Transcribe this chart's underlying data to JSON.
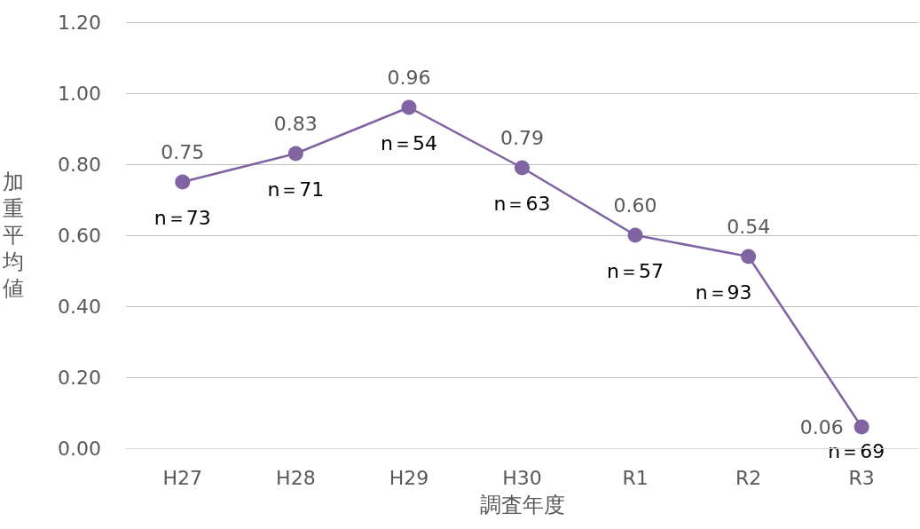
{
  "chart_data": {
    "type": "line",
    "xlabel": "調査年度",
    "ylabel": "加重平均値",
    "categories": [
      "H27",
      "H28",
      "H29",
      "H30",
      "R1",
      "R2",
      "R3"
    ],
    "series": [
      {
        "color": "#8064a2",
        "values": [
          0.75,
          0.83,
          0.96,
          0.79,
          0.6,
          0.54,
          0.06
        ],
        "value_labels": [
          "0.75",
          "0.83",
          "0.96",
          "0.79",
          "0.60",
          "0.54",
          "0.06"
        ]
      }
    ],
    "ylim": [
      0,
      1.2
    ],
    "yticks": [
      {
        "value": 0,
        "label": "0.00"
      },
      {
        "value": 0.2,
        "label": "0.20"
      },
      {
        "value": 0.4,
        "label": "0.40"
      },
      {
        "value": 0.6,
        "label": "0.60"
      },
      {
        "value": 0.8,
        "label": "0.80"
      },
      {
        "value": 1,
        "label": "1.00"
      },
      {
        "value": 1.2,
        "label": "1.20"
      }
    ],
    "grid": "y",
    "marker": "circle",
    "line_style": "solid",
    "annotations": [
      {
        "text": "n＝73",
        "x": "H27",
        "y": 0.75
      },
      {
        "text": "n＝71",
        "x": "H28",
        "y": 0.83
      },
      {
        "text": "n＝54",
        "x": "H29",
        "y": 0.96
      },
      {
        "text": "n＝63",
        "x": "H30",
        "y": 0.79
      },
      {
        "text": "n＝57",
        "x": "R1",
        "y": 0.6
      },
      {
        "text": "n＝93",
        "x": "R2",
        "y": 0.54
      },
      {
        "text": "n＝69",
        "x": "R3",
        "y": 0.06
      }
    ]
  }
}
